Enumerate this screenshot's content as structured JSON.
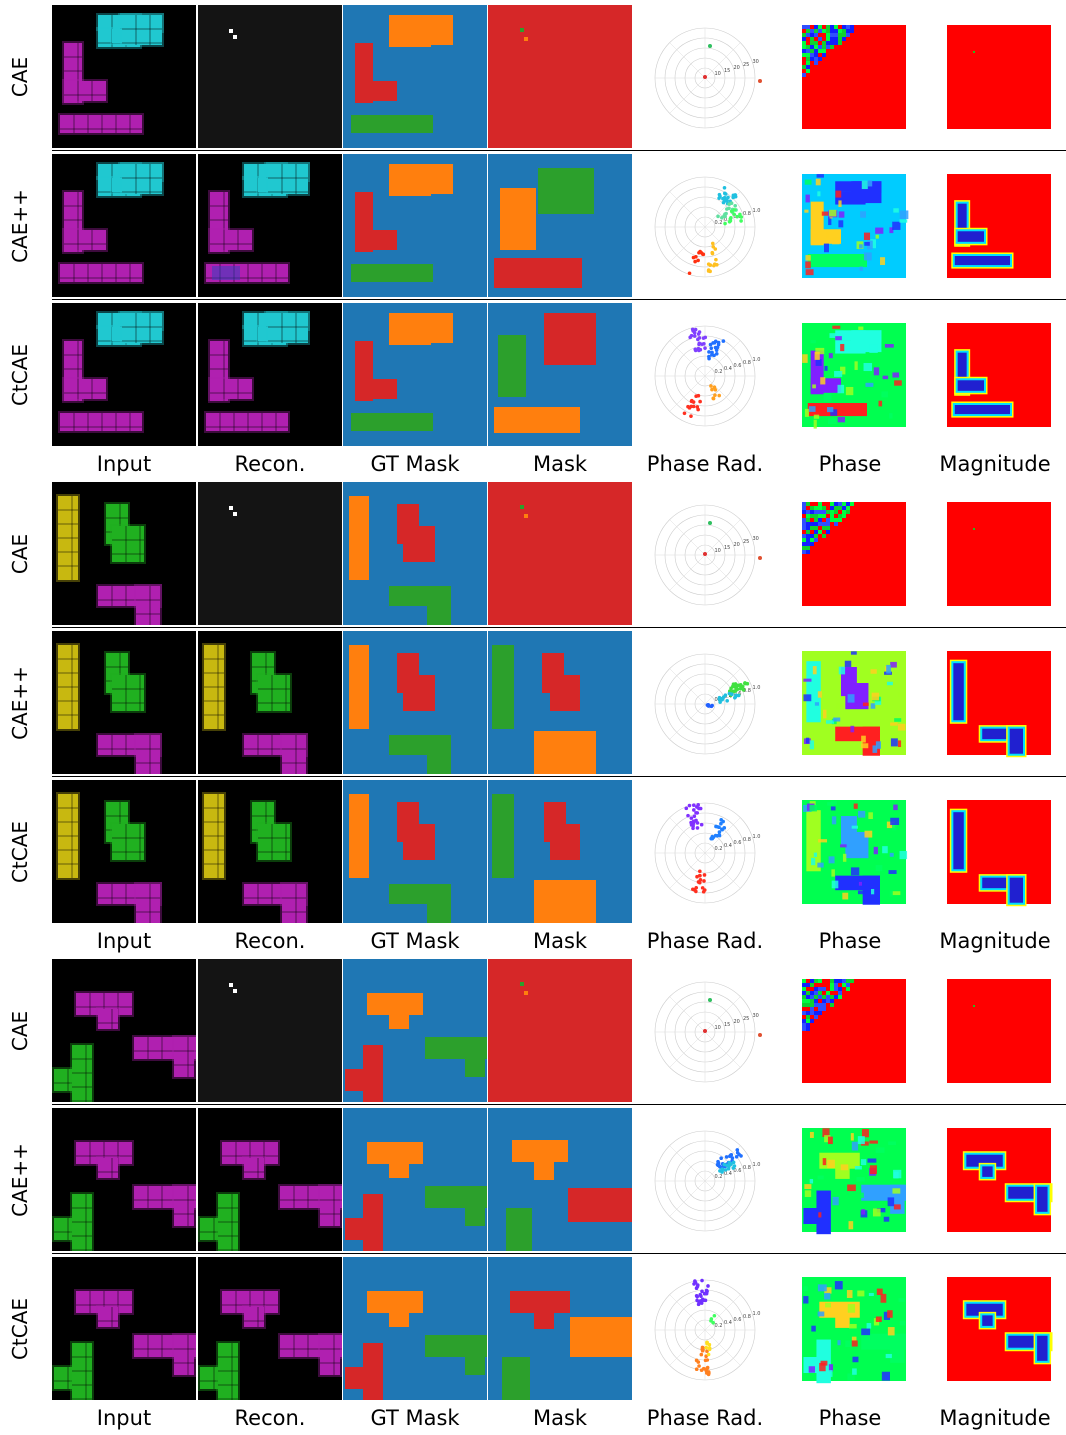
{
  "columns": [
    "Input",
    "Recon.",
    "GT Mask",
    "Mask",
    "Phase Rad.",
    "Phase",
    "Magnitude"
  ],
  "models": [
    "CAE",
    "CAE++",
    "CtCAE"
  ],
  "colors": {
    "mask_blue": "#1f77b4",
    "mask_orange": "#ff7f0e",
    "mask_green": "#2ca02c",
    "mask_red": "#d62728",
    "cyan": "#20c8d0",
    "magenta": "#b020b0",
    "yellow": "#c8b810",
    "green": "#20b020",
    "magnitude_red": "#ff0000",
    "phase_green": "#00ff40",
    "recon_dark": "#141414"
  },
  "polar_tick_labels": {
    "cae": [
      "10",
      "15",
      "20",
      "25",
      "30"
    ],
    "complex": [
      "0.2",
      "0.4",
      "0.6",
      "0.8",
      "1.0"
    ]
  },
  "groups": [
    {
      "rows": [
        {
          "label": "CAE"
        },
        {
          "label": "CAE++"
        },
        {
          "label": "CtCAE"
        }
      ],
      "column_labels": [
        "Input",
        "Recon.",
        "GT Mask",
        "Mask",
        "Phase Rad.",
        "Phase",
        "Magnitude"
      ]
    },
    {
      "rows": [
        {
          "label": "CAE"
        },
        {
          "label": "CAE++"
        },
        {
          "label": "CtCAE"
        }
      ],
      "column_labels": [
        "Input",
        "Recon.",
        "GT Mask",
        "Mask",
        "Phase Rad.",
        "Phase",
        "Magnitude"
      ]
    },
    {
      "rows": [
        {
          "label": "CAE"
        },
        {
          "label": "CAE++"
        },
        {
          "label": "CtCAE"
        }
      ],
      "column_labels": [
        "Input",
        "Recon.",
        "GT Mask",
        "Mask",
        "Phase Rad.",
        "Phase",
        "Magnitude"
      ]
    }
  ]
}
